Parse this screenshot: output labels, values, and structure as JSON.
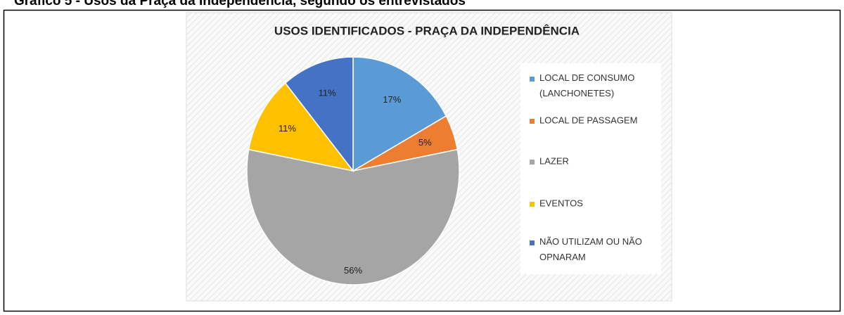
{
  "caption": "Gráfico 5 - Usos da Praça da Independência, segundo os entrevistados",
  "chart_data": {
    "type": "pie",
    "title": "USOS IDENTIFICADOS - PRAÇA DA INDEPENDÊNCIA",
    "categories": [
      "LOCAL DE CONSUMO (LANCHONETES)",
      "LOCAL DE PASSAGEM",
      "LAZER",
      "EVENTOS",
      "NÃO UTILIZAM OU NÃO OPNARAM"
    ],
    "values": [
      17,
      5,
      56,
      11,
      11
    ],
    "value_labels": [
      "17%",
      "5%",
      "56%",
      "11%",
      "11%"
    ],
    "colors": [
      "#5b9bd5",
      "#ed7d31",
      "#a5a5a5",
      "#ffc000",
      "#4472c4"
    ]
  }
}
